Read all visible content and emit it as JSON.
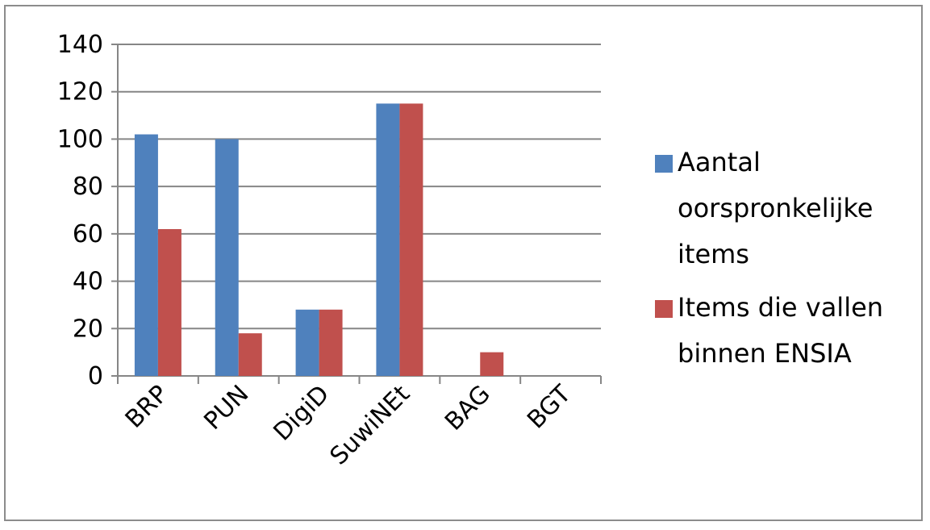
{
  "chart_data": {
    "type": "bar",
    "categories": [
      "BRP",
      "PUN",
      "DigiD",
      "SuwiNEt",
      "BAG",
      "BGT"
    ],
    "series": [
      {
        "name": "Aantal oorspronkelijke items",
        "name_lines": [
          "Aantal",
          "oorspronkelijke",
          "items"
        ],
        "color": "#4f81bd",
        "values": [
          102,
          100,
          28,
          115,
          0,
          0
        ]
      },
      {
        "name": "Items die vallen binnen ENSIA",
        "name_lines": [
          "Items die vallen",
          "binnen ENSIA"
        ],
        "color": "#c0504d",
        "values": [
          62,
          18,
          28,
          115,
          10,
          0
        ]
      }
    ],
    "ylim": [
      0,
      140
    ],
    "yticks": [
      0,
      20,
      40,
      60,
      80,
      100,
      120,
      140
    ],
    "title": "",
    "xlabel": "",
    "ylabel": "",
    "grid": true,
    "legend": "right"
  }
}
